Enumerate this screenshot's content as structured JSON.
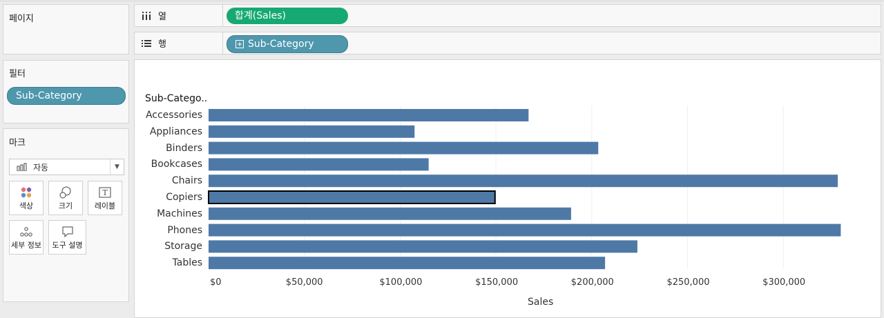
{
  "pages_panel": {
    "title": "페이지"
  },
  "filters_panel": {
    "title": "필터",
    "filter_pill": "Sub-Category"
  },
  "marks_panel": {
    "title": "마크",
    "mark_type": "자동",
    "buttons": {
      "color": "색상",
      "size": "크기",
      "label": "레이블",
      "detail": "세부 정보",
      "tooltip": "도구 설명"
    }
  },
  "columns_shelf": {
    "label": "열",
    "icon": "columns-icon",
    "pill": "합계(Sales)"
  },
  "rows_shelf": {
    "label": "행",
    "icon": "rows-icon",
    "pill": "Sub-Category"
  },
  "colors": {
    "bar": "#4e79a7",
    "green_pill": "#16a974",
    "blue_pill": "#4e97ad"
  },
  "chart_data": {
    "type": "bar",
    "orientation": "horizontal",
    "row_header": "Sub-Catego..",
    "xlabel": "Sales",
    "categories": [
      "Accessories",
      "Appliances",
      "Binders",
      "Bookcases",
      "Chairs",
      "Copiers",
      "Machines",
      "Phones",
      "Storage",
      "Tables"
    ],
    "values": [
      167026,
      107532,
      203413,
      114880,
      328449,
      149528,
      189239,
      330007,
      223844,
      206966
    ],
    "xlim": [
      0,
      345000
    ],
    "ticks": [
      {
        "value": 0,
        "label": "$0"
      },
      {
        "value": 50000,
        "label": "$50,000"
      },
      {
        "value": 100000,
        "label": "$100,000"
      },
      {
        "value": 150000,
        "label": "$150,000"
      },
      {
        "value": 200000,
        "label": "$200,000"
      },
      {
        "value": 250000,
        "label": "$250,000"
      },
      {
        "value": 300000,
        "label": "$300,000"
      }
    ],
    "selected_category": "Copiers",
    "gridlines": true
  }
}
